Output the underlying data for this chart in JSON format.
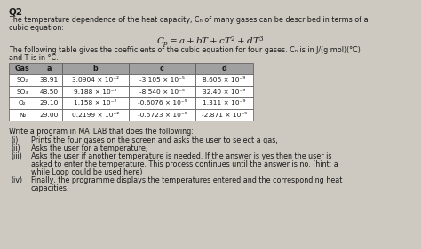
{
  "title": "Q2",
  "intro_line1": "The temperature dependence of the heat capacity, Cₙ of many gases can be described in terms of a",
  "intro_line2": "cubic equation:",
  "equation": "$C_p = a + bT + cT^2 + dT^3$",
  "table_intro_line1": "The following table gives the coefficients of the cubic equation for four gases. Cₙ is in J/(g mol)(°C)",
  "table_intro_line2": "and T is in °C.",
  "col_headers": [
    "Gas",
    "a",
    "b",
    "c",
    "d"
  ],
  "table_data": [
    [
      "SO₂",
      "38.91",
      "3.0904 × 10⁻²",
      "-3.105 × 10⁻⁵",
      "8.606 × 10⁻⁹"
    ],
    [
      "SO₃",
      "48.50",
      "9.188 × 10⁻²",
      "-8.540 × 10⁻⁵",
      "32.40 × 10⁻⁹"
    ],
    [
      "O₂",
      "29.10",
      "1.158 × 10⁻²",
      "-0.6076 × 10⁻⁵",
      "1.311 × 10⁻⁹"
    ],
    [
      "N₂",
      "29.00",
      "0.2199 × 10⁻²",
      "-0.5723 × 10⁻⁵",
      "-2.871 × 10⁻⁹"
    ]
  ],
  "write_text": "Write a program in MATLAB that does the following:",
  "step_i_label": "(i)",
  "step_i_text": "Prints the four gases on the screen and asks the user to select a gas,",
  "step_ii_label": "(ii)",
  "step_ii_text": "Asks the user for a temperature,",
  "step_iii_label": "(iii)",
  "step_iii_line1": "Asks the user if another temperature is needed. If the answer is yes then the user is",
  "step_iii_line2": "asked to enter the temperature. This process continues until the answer is no. (hint: a",
  "step_iii_line3": "while Loop could be used here)",
  "step_iv_label": "(iv)",
  "step_iv_line1": "Finally, the programme displays the temperatures entered and the corresponding heat",
  "step_iv_line2": "capacities.",
  "bg_color": "#cdc9c0",
  "text_color": "#1a1a1a",
  "table_header_bg": "#a0a0a0",
  "table_row_bg": "#ffffff",
  "font_size": 5.8,
  "title_font_size": 7.5,
  "eq_font_size": 7.5
}
